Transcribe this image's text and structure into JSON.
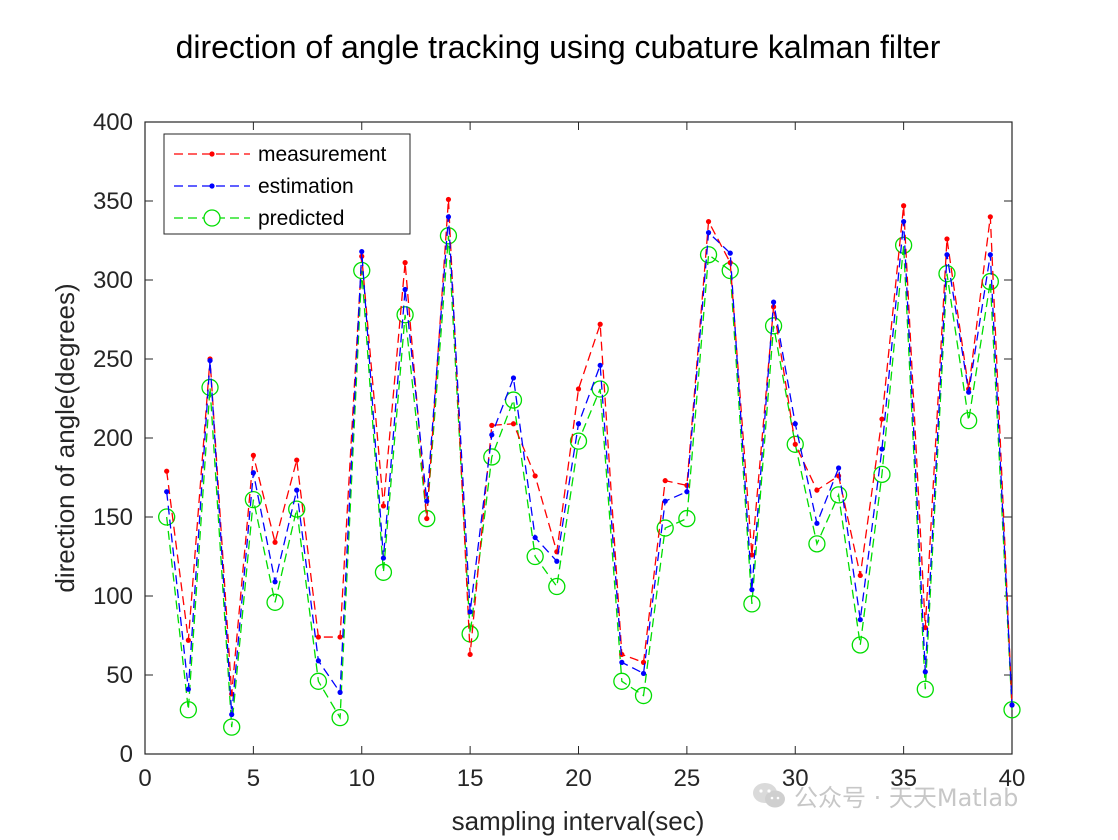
{
  "chart_data": {
    "type": "line",
    "title": "direction of angle tracking using cubature kalman filter",
    "xlabel": "sampling interval(sec)",
    "ylabel": "direction of angle(degrees)",
    "xlim": [
      0,
      40
    ],
    "ylim": [
      0,
      400
    ],
    "xticks": [
      0,
      5,
      10,
      15,
      20,
      25,
      30,
      35,
      40
    ],
    "yticks": [
      0,
      50,
      100,
      150,
      200,
      250,
      300,
      350,
      400
    ],
    "grid": false,
    "legend_position": "top-left",
    "x": [
      1,
      2,
      3,
      4,
      5,
      6,
      7,
      8,
      9,
      10,
      11,
      12,
      13,
      14,
      15,
      16,
      17,
      18,
      19,
      20,
      21,
      22,
      23,
      24,
      25,
      26,
      27,
      28,
      29,
      30,
      31,
      32,
      33,
      34,
      35,
      36,
      37,
      38,
      39,
      40
    ],
    "series": [
      {
        "name": "measurement",
        "color": "#ff0000",
        "marker": "dot",
        "line": "dashed",
        "values": [
          179,
          72,
          250,
          38,
          189,
          134,
          186,
          74,
          74,
          315,
          157,
          311,
          149,
          351,
          63,
          208,
          209,
          176,
          128,
          231,
          272,
          63,
          58,
          173,
          170,
          337,
          311,
          126,
          283,
          196,
          167,
          176,
          113,
          212,
          347,
          80,
          326,
          231,
          340,
          31
        ]
      },
      {
        "name": "estimation",
        "color": "#0000ff",
        "marker": "dot",
        "line": "dashed",
        "values": [
          166,
          41,
          249,
          25,
          178,
          109,
          167,
          59,
          39,
          318,
          124,
          294,
          160,
          340,
          90,
          202,
          238,
          137,
          122,
          209,
          246,
          58,
          51,
          160,
          166,
          330,
          317,
          104,
          286,
          209,
          146,
          181,
          85,
          193,
          337,
          52,
          316,
          229,
          316,
          31
        ]
      },
      {
        "name": "predicted",
        "color": "#00dd00",
        "marker": "circle",
        "line": "dashed",
        "values": [
          150,
          28,
          232,
          17,
          161,
          96,
          155,
          46,
          23,
          306,
          115,
          278,
          149,
          328,
          76,
          188,
          224,
          125,
          106,
          198,
          231,
          46,
          37,
          143,
          149,
          316,
          306,
          95,
          271,
          196,
          133,
          164,
          69,
          177,
          322,
          41,
          304,
          211,
          299,
          28
        ]
      }
    ]
  },
  "watermark": {
    "text": "公众号 · 天天Matlab",
    "icon": "wechat-icon"
  }
}
